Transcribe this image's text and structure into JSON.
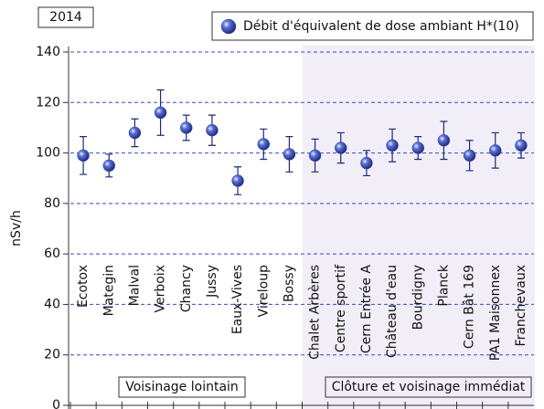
{
  "chart_data": {
    "type": "errorbar",
    "year_label": "2014",
    "ylabel": "nSv/h",
    "categories": [
      "Ecotox",
      "Mategin",
      "Malval",
      "Verboix",
      "Chancy",
      "Jussy",
      "Eaux-Vives",
      "Vireloup",
      "Bossy",
      "Chalet Arbères",
      "Centre sportif",
      "Cern Entrée A",
      "Château d'eau",
      "Bourdigny",
      "Planck",
      "Cern Bât 169",
      "PA1 Maisonnex",
      "Franchevaux"
    ],
    "series": [
      {
        "name": "Débit d'équivalent de dose ambiant H*(10)",
        "color": "#3447b0",
        "values": [
          99,
          95,
          108,
          116,
          110,
          109,
          89,
          103.5,
          99.5,
          99,
          102,
          96,
          103,
          102,
          105,
          99,
          101,
          103
        ],
        "errors": [
          7.5,
          4.5,
          5.5,
          9,
          5,
          6,
          5.5,
          6,
          7,
          6.5,
          6,
          5,
          6.5,
          4.5,
          7.5,
          6,
          7,
          5
        ]
      }
    ],
    "ylim": [
      0,
      140
    ],
    "yticks": [
      0,
      20,
      40,
      60,
      80,
      100,
      120,
      140
    ],
    "grid": true,
    "legend": "top-right",
    "annotations": [
      "Voisinage lointain",
      "Clôture et voisinage immédiat"
    ]
  }
}
